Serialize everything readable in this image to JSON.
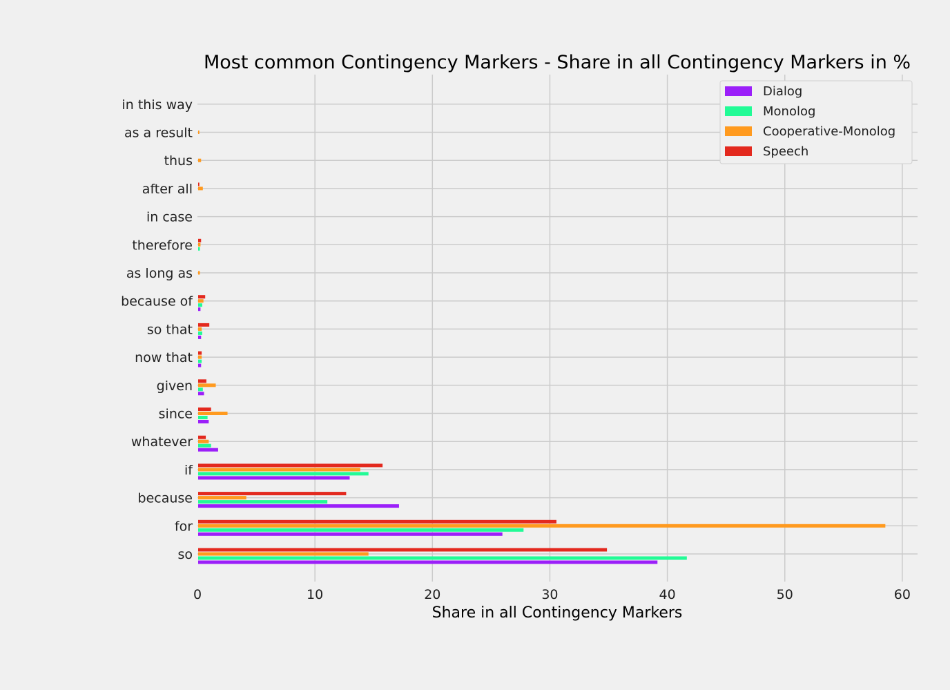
{
  "chart_data": {
    "type": "bar",
    "orientation": "horizontal",
    "title": "Most common Contingency Markers - Share in all Contingency Markers in %",
    "xlabel": "Share in all Contingency Markers",
    "ylabel": "",
    "xlim": [
      0,
      61.3
    ],
    "xticks": [
      "0",
      "10",
      "20",
      "30",
      "40",
      "50",
      "60"
    ],
    "grid": true,
    "legend_position": "top-right",
    "categories": [
      "so",
      "for",
      "because",
      "if",
      "whatever",
      "since",
      "given",
      "now that",
      "so that",
      "because of",
      "as long as",
      "therefore",
      "in case",
      "after all",
      "thus",
      "as a result",
      "in this way"
    ],
    "series": [
      {
        "name": "Dialog",
        "color": "#9b1ff9",
        "values": [
          39.1,
          25.9,
          17.1,
          12.9,
          1.7,
          0.9,
          0.5,
          0.25,
          0.25,
          0.2,
          0.0,
          0.0,
          0.0,
          0.0,
          0.0,
          0.0,
          0.0
        ]
      },
      {
        "name": "Monolog",
        "color": "#22fb96",
        "values": [
          41.6,
          27.7,
          11.0,
          14.5,
          1.1,
          0.8,
          0.4,
          0.3,
          0.35,
          0.35,
          0.0,
          0.15,
          0.0,
          0.0,
          0.0,
          0.0,
          0.0
        ]
      },
      {
        "name": "Cooperative-Monolog",
        "color": "#ff9a1f",
        "values": [
          14.5,
          58.5,
          4.1,
          13.8,
          0.9,
          2.5,
          1.5,
          0.3,
          0.3,
          0.45,
          0.15,
          0.2,
          0.0,
          0.4,
          0.25,
          0.1,
          0.0
        ]
      },
      {
        "name": "Speech",
        "color": "#e3291e",
        "values": [
          34.8,
          30.5,
          12.6,
          15.7,
          0.65,
          1.1,
          0.7,
          0.3,
          0.95,
          0.6,
          0.0,
          0.25,
          0.0,
          0.1,
          0.0,
          0.0,
          0.0
        ]
      }
    ]
  }
}
